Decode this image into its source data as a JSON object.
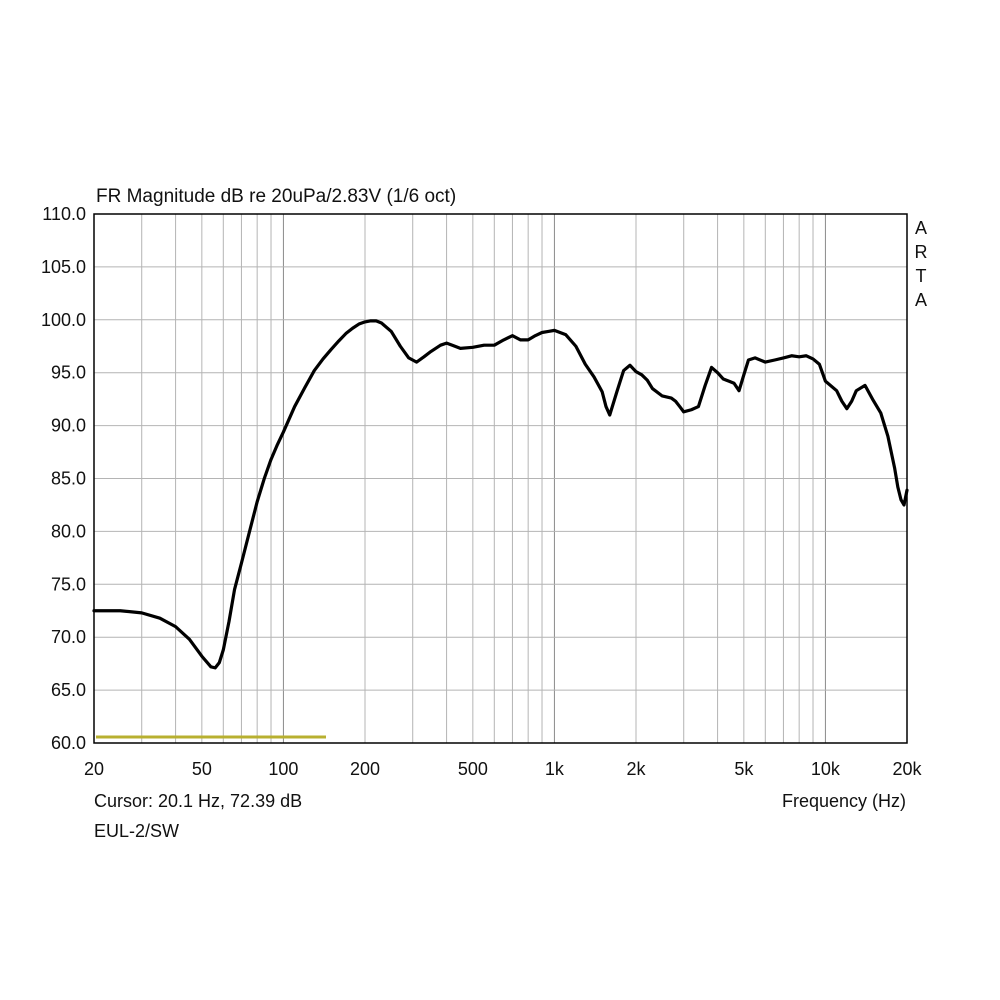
{
  "chart_data": {
    "type": "line",
    "title": "FR Magnitude dB re 20uPa/2.83V (1/6 oct)",
    "xlabel": "Frequency (Hz)",
    "ylabel": "",
    "x_scale": "log",
    "xlim": [
      20,
      20000
    ],
    "ylim": [
      60,
      110
    ],
    "grid": true,
    "x_ticks": [
      20,
      50,
      100,
      200,
      500,
      1000,
      2000,
      5000,
      10000,
      20000
    ],
    "x_tick_labels": [
      "20",
      "50",
      "100",
      "200",
      "500",
      "1k",
      "2k",
      "5k",
      "10k",
      "20k"
    ],
    "y_ticks": [
      60,
      65,
      70,
      75,
      80,
      85,
      90,
      95,
      100,
      105,
      110
    ],
    "y_tick_labels": [
      "60.0",
      "65.0",
      "70.0",
      "75.0",
      "80.0",
      "85.0",
      "90.0",
      "95.0",
      "100.0",
      "105.0",
      "110.0"
    ],
    "side_label": [
      "A",
      "R",
      "T",
      "A"
    ],
    "cursor_text": "Cursor: 20.1 Hz, 72.39 dB",
    "footer_text": "EUL-2/SW",
    "series": [
      {
        "color": "#000000",
        "x": [
          20,
          25,
          30,
          35,
          40,
          45,
          50,
          54,
          56,
          58,
          60,
          63,
          66,
          70,
          75,
          80,
          85,
          90,
          95,
          100,
          110,
          120,
          130,
          140,
          150,
          160,
          170,
          180,
          190,
          200,
          210,
          220,
          230,
          250,
          270,
          290,
          310,
          330,
          350,
          380,
          400,
          420,
          450,
          500,
          550,
          600,
          650,
          700,
          750,
          800,
          850,
          900,
          950,
          1000,
          1100,
          1200,
          1300,
          1400,
          1500,
          1550,
          1600,
          1700,
          1800,
          1900,
          2000,
          2100,
          2200,
          2300,
          2500,
          2700,
          2800,
          2900,
          3000,
          3200,
          3400,
          3600,
          3800,
          4000,
          4200,
          4400,
          4600,
          4800,
          5000,
          5200,
          5500,
          6000,
          6500,
          7000,
          7500,
          8000,
          8500,
          9000,
          9500,
          10000,
          11000,
          11500,
          12000,
          12500,
          13000,
          14000,
          15000,
          16000,
          17000,
          18000,
          18500,
          19000,
          19500,
          20000
        ],
        "y": [
          72.5,
          72.5,
          72.3,
          71.8,
          71.0,
          69.8,
          68.2,
          67.2,
          67.1,
          67.6,
          68.8,
          71.5,
          74.5,
          77.0,
          80.0,
          82.8,
          85.0,
          86.8,
          88.2,
          89.4,
          91.8,
          93.6,
          95.2,
          96.3,
          97.2,
          98.0,
          98.7,
          99.2,
          99.6,
          99.8,
          99.9,
          99.9,
          99.7,
          98.9,
          97.5,
          96.4,
          96.0,
          96.5,
          97.0,
          97.6,
          97.8,
          97.6,
          97.3,
          97.4,
          97.6,
          97.6,
          98.1,
          98.5,
          98.1,
          98.1,
          98.5,
          98.8,
          98.9,
          99.0,
          98.6,
          97.5,
          95.8,
          94.6,
          93.2,
          91.8,
          91.0,
          93.2,
          95.2,
          95.7,
          95.1,
          94.8,
          94.3,
          93.5,
          92.8,
          92.6,
          92.3,
          91.8,
          91.3,
          91.5,
          91.8,
          93.8,
          95.5,
          95.0,
          94.4,
          94.2,
          94.0,
          93.3,
          94.8,
          96.2,
          96.4,
          96.0,
          96.2,
          96.4,
          96.6,
          96.5,
          96.6,
          96.3,
          95.8,
          94.2,
          93.3,
          92.3,
          91.6,
          92.3,
          93.3,
          93.8,
          92.4,
          91.2,
          89.0,
          86.0,
          84.2,
          83.0,
          82.5,
          83.9
        ]
      }
    ]
  }
}
